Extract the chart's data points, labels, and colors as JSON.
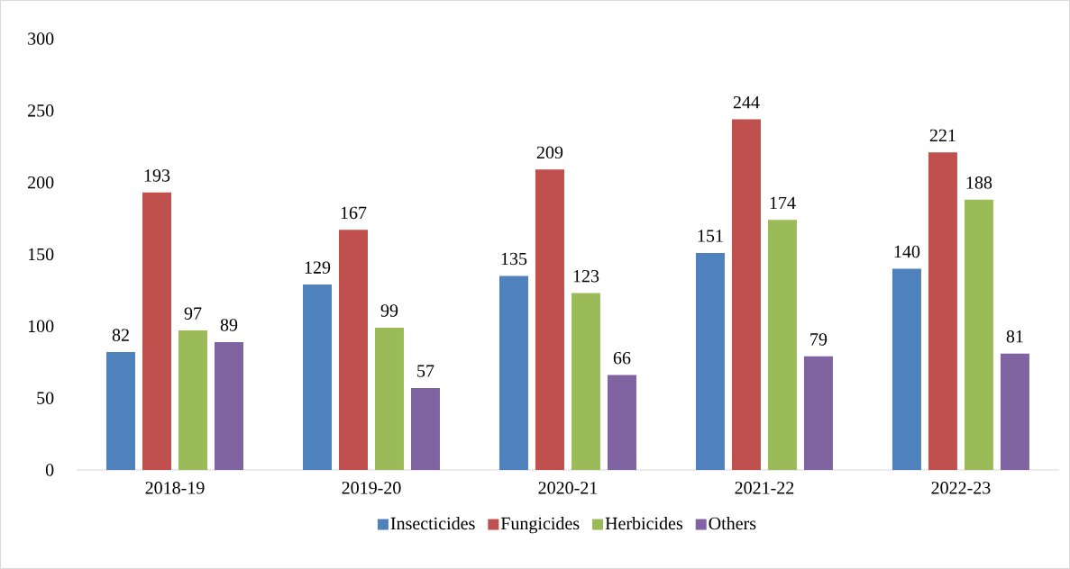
{
  "chart_data": {
    "type": "bar",
    "categories": [
      "2018-19",
      "2019-20",
      "2020-21",
      "2021-22",
      "2022-23"
    ],
    "series": [
      {
        "name": "Insecticides",
        "color": "#4f81bd",
        "values": [
          82,
          129,
          135,
          151,
          140
        ]
      },
      {
        "name": "Fungicides",
        "color": "#c0504d",
        "values": [
          193,
          167,
          209,
          244,
          221
        ]
      },
      {
        "name": "Herbicides",
        "color": "#9bbb59",
        "values": [
          97,
          99,
          123,
          174,
          188
        ]
      },
      {
        "name": "Others",
        "color": "#8064a2",
        "values": [
          89,
          57,
          66,
          79,
          81
        ]
      }
    ],
    "ylim": [
      0,
      300
    ],
    "yticks": [
      0,
      50,
      100,
      150,
      200,
      250,
      300
    ],
    "data_labels": true,
    "legend": "bottom"
  }
}
